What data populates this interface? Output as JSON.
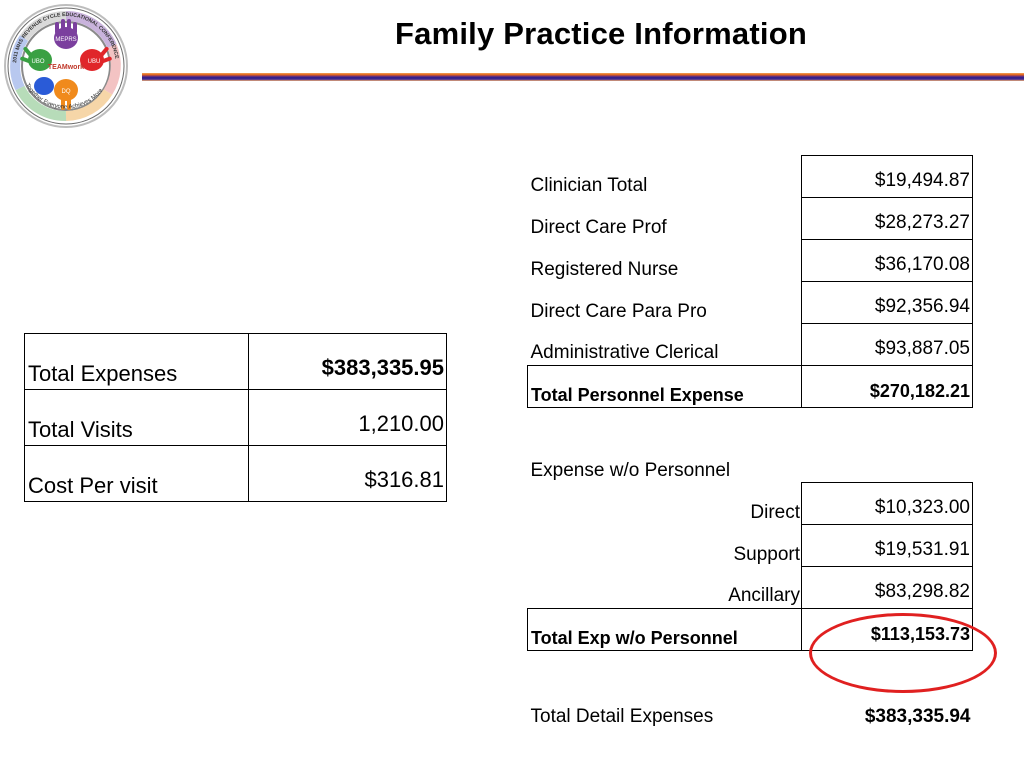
{
  "header": {
    "title": "Family Practice Information",
    "logo": {
      "ring_text": "2011 MHS REVENUE CYCLE EDUCATIONAL CONFERENCE",
      "tagline": "Together Everyone Achieves More",
      "center_text": "TEAMwork",
      "hand_labels": [
        "MEPRS",
        "UBO",
        "UBU",
        "DQ"
      ],
      "colors": {
        "purple": "#7b3f9e",
        "green": "#3aa043",
        "red": "#e0262a",
        "orange": "#f08a1c",
        "blue": "#2a5bd7"
      }
    }
  },
  "summary": {
    "rows": [
      {
        "label": "Total Expenses",
        "value": "$383,335.95"
      },
      {
        "label": "Total Visits",
        "value": "1,210.00"
      },
      {
        "label": "Cost Per visit",
        "value": "$316.81"
      }
    ]
  },
  "detail": {
    "personnel": [
      {
        "label": "Clinician Total",
        "value": "$19,494.87"
      },
      {
        "label": "Direct Care Prof",
        "value": "$28,273.27"
      },
      {
        "label": "Registered Nurse",
        "value": "$36,170.08"
      },
      {
        "label": "Direct Care Para Pro",
        "value": "$92,356.94"
      },
      {
        "label": "Administrative Clerical",
        "value": "$93,887.05"
      }
    ],
    "personnel_total": {
      "label": "Total Personnel Expense",
      "value": "$270,182.21"
    },
    "non_personnel_heading": "Expense w/o Personnel",
    "non_personnel": [
      {
        "label": "Direct",
        "value": "$10,323.00"
      },
      {
        "label": "Support",
        "value": "$19,531.91"
      },
      {
        "label": "Ancillary",
        "value": "$83,298.82"
      }
    ],
    "non_personnel_total": {
      "label": "Total Exp w/o Personnel",
      "value": "$113,153.73"
    },
    "grand_total": {
      "label": "Total Detail Expenses",
      "value": "$383,335.94"
    }
  },
  "highlight_color": "#e02020"
}
